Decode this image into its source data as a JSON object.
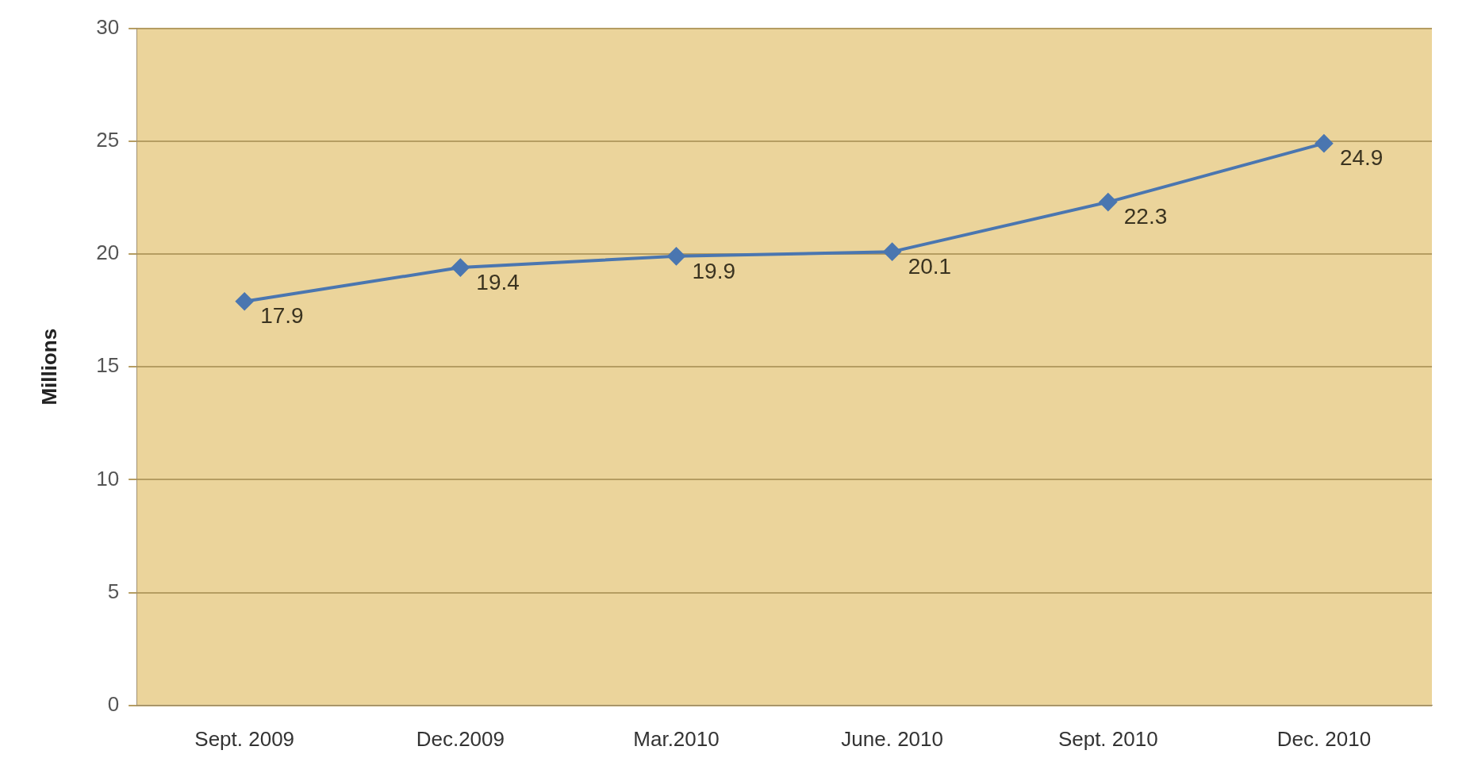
{
  "chart_data": {
    "type": "line",
    "ylabel": "Millions",
    "categories": [
      "Sept. 2009",
      "Dec.2009",
      "Mar.2010",
      "June. 2010",
      "Sept. 2010",
      "Dec. 2010"
    ],
    "series": [
      {
        "color": "#4a76b0",
        "values": [
          17.9,
          19.4,
          19.9,
          20.1,
          22.3,
          24.9
        ]
      }
    ],
    "ylim": [
      0,
      30
    ],
    "yticks": [
      0,
      5,
      10,
      15,
      20,
      25,
      30
    ],
    "grid": "y",
    "marker": "diamond",
    "data_labels": true,
    "legend": false
  }
}
